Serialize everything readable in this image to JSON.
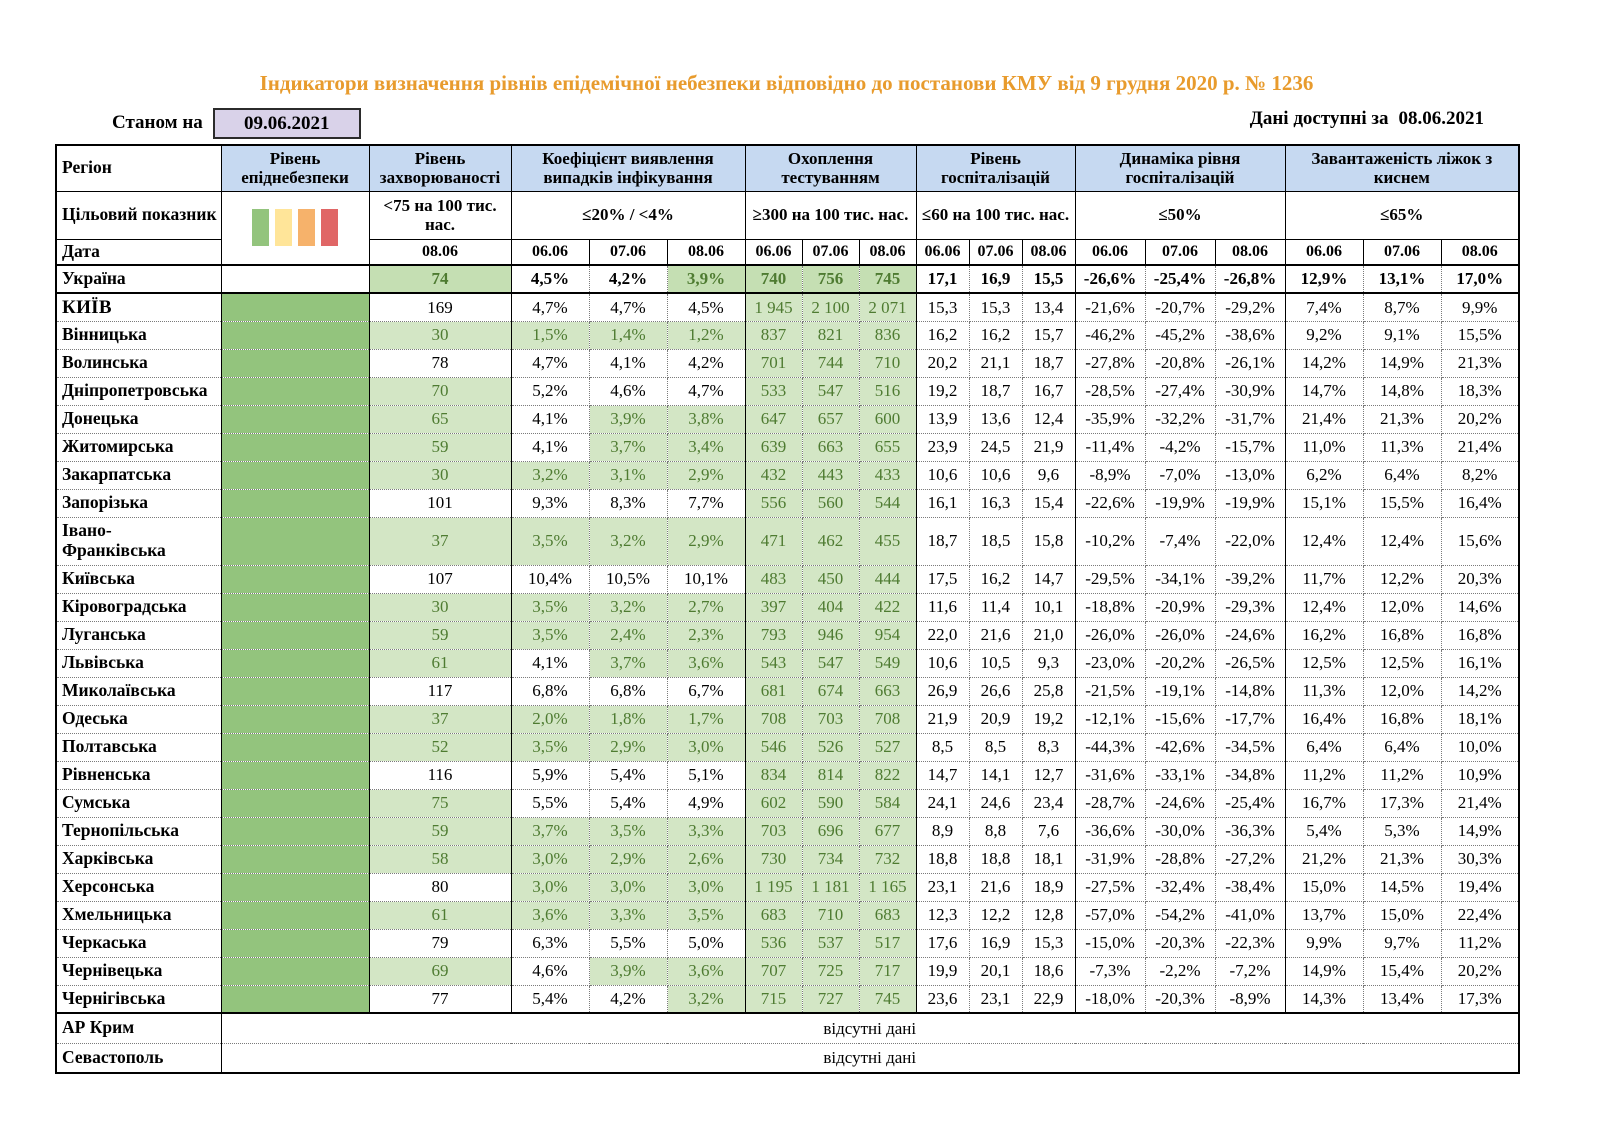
{
  "title": "Індикатори визначення рівнів епідемічної небезпеки відповідно до постанови КМУ від 9 грудня 2020 р. № 1236",
  "as_of_label": "Станом на",
  "as_of_date": "09.06.2021",
  "available_label": "Дані доступні за",
  "available_date": "08.06.2021",
  "colors": {
    "accent": "#E89B2D",
    "header_bg": "#C6D9F1",
    "green_cell": "#D3E6C5",
    "green_sum": "#C5DFB3",
    "green_text": "#4E7B31",
    "epid_green": "#93C47D",
    "lavender": "#D9D2E9",
    "legend": [
      "#93C47D",
      "#FFE599",
      "#F6B26B",
      "#E06666"
    ]
  },
  "table": {
    "region_header": "Регіон",
    "target_label": "Цільовий показник",
    "date_label": "Дата",
    "no_data_text": "відсутні дані",
    "groups": [
      {
        "id": "epid",
        "label": "Рівень епіднебезпеки",
        "target": "",
        "cols": 1,
        "dates": []
      },
      {
        "id": "incidence",
        "label": "Рівень захворюваності",
        "target": "<75 на 100 тис. нас.",
        "cols": 1,
        "dates": [
          "08.06"
        ]
      },
      {
        "id": "detection",
        "label": "Коефіцієнт виявлення випадків інфікування",
        "target": "≤20% / <4%",
        "cols": 3,
        "dates": [
          "06.06",
          "07.06",
          "08.06"
        ]
      },
      {
        "id": "testing",
        "label": "Охоплення тестуванням",
        "target": "≥300 на 100 тис. нас.",
        "cols": 3,
        "dates": [
          "06.06",
          "07.06",
          "08.06"
        ]
      },
      {
        "id": "hosp",
        "label": "Рівень госпіталізацій",
        "target": "≤60 на 100 тис. нас.",
        "cols": 3,
        "dates": [
          "06.06",
          "07.06",
          "08.06"
        ]
      },
      {
        "id": "hosp_dyn",
        "label": "Динаміка рівня госпіталізацій",
        "target": "≤50%",
        "cols": 3,
        "dates": [
          "06.06",
          "07.06",
          "08.06"
        ]
      },
      {
        "id": "oxygen",
        "label": "Завантаженість ліжок з киснем",
        "target": "≤65%",
        "cols": 3,
        "dates": [
          "06.06",
          "07.06",
          "08.06"
        ]
      }
    ],
    "rows": [
      {
        "r": "Україна",
        "sum": true,
        "epid": false,
        "inc": "74",
        "incg": 1,
        "det": [
          "4,5%",
          "4,2%",
          "3,9%"
        ],
        "detg": [
          0,
          0,
          1
        ],
        "test": [
          "740",
          "756",
          "745"
        ],
        "hosp": [
          "17,1",
          "16,9",
          "15,5"
        ],
        "dyn": [
          "-26,6%",
          "-25,4%",
          "-26,8%"
        ],
        "oxy": [
          "12,9%",
          "13,1%",
          "17,0%"
        ]
      },
      {
        "r": "КИЇВ",
        "caps": true,
        "epid": true,
        "inc": "169",
        "incg": 0,
        "det": [
          "4,7%",
          "4,7%",
          "4,5%"
        ],
        "detg": [
          0,
          0,
          0
        ],
        "test": [
          "1 945",
          "2 100",
          "2 071"
        ],
        "hosp": [
          "15,3",
          "15,3",
          "13,4"
        ],
        "dyn": [
          "-21,6%",
          "-20,7%",
          "-29,2%"
        ],
        "oxy": [
          "7,4%",
          "8,7%",
          "9,9%"
        ]
      },
      {
        "r": "Вінницька",
        "epid": true,
        "inc": "30",
        "incg": 1,
        "det": [
          "1,5%",
          "1,4%",
          "1,2%"
        ],
        "detg": [
          1,
          1,
          1
        ],
        "test": [
          "837",
          "821",
          "836"
        ],
        "hosp": [
          "16,2",
          "16,2",
          "15,7"
        ],
        "dyn": [
          "-46,2%",
          "-45,2%",
          "-38,6%"
        ],
        "oxy": [
          "9,2%",
          "9,1%",
          "15,5%"
        ]
      },
      {
        "r": "Волинська",
        "epid": true,
        "inc": "78",
        "incg": 0,
        "det": [
          "4,7%",
          "4,1%",
          "4,2%"
        ],
        "detg": [
          0,
          0,
          0
        ],
        "test": [
          "701",
          "744",
          "710"
        ],
        "hosp": [
          "20,2",
          "21,1",
          "18,7"
        ],
        "dyn": [
          "-27,8%",
          "-20,8%",
          "-26,1%"
        ],
        "oxy": [
          "14,2%",
          "14,9%",
          "21,3%"
        ]
      },
      {
        "r": "Дніпропетровська",
        "epid": true,
        "inc": "70",
        "incg": 1,
        "det": [
          "5,2%",
          "4,6%",
          "4,7%"
        ],
        "detg": [
          0,
          0,
          0
        ],
        "test": [
          "533",
          "547",
          "516"
        ],
        "hosp": [
          "19,2",
          "18,7",
          "16,7"
        ],
        "dyn": [
          "-28,5%",
          "-27,4%",
          "-30,9%"
        ],
        "oxy": [
          "14,7%",
          "14,8%",
          "18,3%"
        ]
      },
      {
        "r": "Донецька",
        "epid": true,
        "inc": "65",
        "incg": 1,
        "det": [
          "4,1%",
          "3,9%",
          "3,8%"
        ],
        "detg": [
          0,
          1,
          1
        ],
        "test": [
          "647",
          "657",
          "600"
        ],
        "hosp": [
          "13,9",
          "13,6",
          "12,4"
        ],
        "dyn": [
          "-35,9%",
          "-32,2%",
          "-31,7%"
        ],
        "oxy": [
          "21,4%",
          "21,3%",
          "20,2%"
        ]
      },
      {
        "r": "Житомирська",
        "epid": true,
        "inc": "59",
        "incg": 1,
        "det": [
          "4,1%",
          "3,7%",
          "3,4%"
        ],
        "detg": [
          0,
          1,
          1
        ],
        "test": [
          "639",
          "663",
          "655"
        ],
        "hosp": [
          "23,9",
          "24,5",
          "21,9"
        ],
        "dyn": [
          "-11,4%",
          "-4,2%",
          "-15,7%"
        ],
        "oxy": [
          "11,0%",
          "11,3%",
          "21,4%"
        ]
      },
      {
        "r": "Закарпатська",
        "epid": true,
        "inc": "30",
        "incg": 1,
        "det": [
          "3,2%",
          "3,1%",
          "2,9%"
        ],
        "detg": [
          1,
          1,
          1
        ],
        "test": [
          "432",
          "443",
          "433"
        ],
        "hosp": [
          "10,6",
          "10,6",
          "9,6"
        ],
        "dyn": [
          "-8,9%",
          "-7,0%",
          "-13,0%"
        ],
        "oxy": [
          "6,2%",
          "6,4%",
          "8,2%"
        ]
      },
      {
        "r": "Запорізька",
        "epid": true,
        "inc": "101",
        "incg": 0,
        "det": [
          "9,3%",
          "8,3%",
          "7,7%"
        ],
        "detg": [
          0,
          0,
          0
        ],
        "test": [
          "556",
          "560",
          "544"
        ],
        "hosp": [
          "16,1",
          "16,3",
          "15,4"
        ],
        "dyn": [
          "-22,6%",
          "-19,9%",
          "-19,9%"
        ],
        "oxy": [
          "15,1%",
          "15,5%",
          "16,4%"
        ]
      },
      {
        "r": "Івано-Франківська",
        "tall": true,
        "epid": true,
        "inc": "37",
        "incg": 1,
        "det": [
          "3,5%",
          "3,2%",
          "2,9%"
        ],
        "detg": [
          1,
          1,
          1
        ],
        "test": [
          "471",
          "462",
          "455"
        ],
        "hosp": [
          "18,7",
          "18,5",
          "15,8"
        ],
        "dyn": [
          "-10,2%",
          "-7,4%",
          "-22,0%"
        ],
        "oxy": [
          "12,4%",
          "12,4%",
          "15,6%"
        ]
      },
      {
        "r": "Київська",
        "epid": true,
        "inc": "107",
        "incg": 0,
        "det": [
          "10,4%",
          "10,5%",
          "10,1%"
        ],
        "detg": [
          0,
          0,
          0
        ],
        "test": [
          "483",
          "450",
          "444"
        ],
        "hosp": [
          "17,5",
          "16,2",
          "14,7"
        ],
        "dyn": [
          "-29,5%",
          "-34,1%",
          "-39,2%"
        ],
        "oxy": [
          "11,7%",
          "12,2%",
          "20,3%"
        ]
      },
      {
        "r": "Кіровоградська",
        "epid": true,
        "inc": "30",
        "incg": 1,
        "det": [
          "3,5%",
          "3,2%",
          "2,7%"
        ],
        "detg": [
          1,
          1,
          1
        ],
        "test": [
          "397",
          "404",
          "422"
        ],
        "hosp": [
          "11,6",
          "11,4",
          "10,1"
        ],
        "dyn": [
          "-18,8%",
          "-20,9%",
          "-29,3%"
        ],
        "oxy": [
          "12,4%",
          "12,0%",
          "14,6%"
        ]
      },
      {
        "r": "Луганська",
        "epid": true,
        "inc": "59",
        "incg": 1,
        "det": [
          "3,5%",
          "2,4%",
          "2,3%"
        ],
        "detg": [
          1,
          1,
          1
        ],
        "test": [
          "793",
          "946",
          "954"
        ],
        "hosp": [
          "22,0",
          "21,6",
          "21,0"
        ],
        "dyn": [
          "-26,0%",
          "-26,0%",
          "-24,6%"
        ],
        "oxy": [
          "16,2%",
          "16,8%",
          "16,8%"
        ]
      },
      {
        "r": "Львівська",
        "epid": true,
        "inc": "61",
        "incg": 1,
        "det": [
          "4,1%",
          "3,7%",
          "3,6%"
        ],
        "detg": [
          0,
          1,
          1
        ],
        "test": [
          "543",
          "547",
          "549"
        ],
        "hosp": [
          "10,6",
          "10,5",
          "9,3"
        ],
        "dyn": [
          "-23,0%",
          "-20,2%",
          "-26,5%"
        ],
        "oxy": [
          "12,5%",
          "12,5%",
          "16,1%"
        ]
      },
      {
        "r": "Миколаївська",
        "epid": true,
        "inc": "117",
        "incg": 0,
        "det": [
          "6,8%",
          "6,8%",
          "6,7%"
        ],
        "detg": [
          0,
          0,
          0
        ],
        "test": [
          "681",
          "674",
          "663"
        ],
        "hosp": [
          "26,9",
          "26,6",
          "25,8"
        ],
        "dyn": [
          "-21,5%",
          "-19,1%",
          "-14,8%"
        ],
        "oxy": [
          "11,3%",
          "12,0%",
          "14,2%"
        ]
      },
      {
        "r": "Одеська",
        "epid": true,
        "inc": "37",
        "incg": 1,
        "det": [
          "2,0%",
          "1,8%",
          "1,7%"
        ],
        "detg": [
          1,
          1,
          1
        ],
        "test": [
          "708",
          "703",
          "708"
        ],
        "hosp": [
          "21,9",
          "20,9",
          "19,2"
        ],
        "dyn": [
          "-12,1%",
          "-15,6%",
          "-17,7%"
        ],
        "oxy": [
          "16,4%",
          "16,8%",
          "18,1%"
        ]
      },
      {
        "r": "Полтавська",
        "epid": true,
        "inc": "52",
        "incg": 1,
        "det": [
          "3,5%",
          "2,9%",
          "3,0%"
        ],
        "detg": [
          1,
          1,
          1
        ],
        "test": [
          "546",
          "526",
          "527"
        ],
        "hosp": [
          "8,5",
          "8,5",
          "8,3"
        ],
        "dyn": [
          "-44,3%",
          "-42,6%",
          "-34,5%"
        ],
        "oxy": [
          "6,4%",
          "6,4%",
          "10,0%"
        ]
      },
      {
        "r": "Рівненська",
        "epid": true,
        "inc": "116",
        "incg": 0,
        "det": [
          "5,9%",
          "5,4%",
          "5,1%"
        ],
        "detg": [
          0,
          0,
          0
        ],
        "test": [
          "834",
          "814",
          "822"
        ],
        "hosp": [
          "14,7",
          "14,1",
          "12,7"
        ],
        "dyn": [
          "-31,6%",
          "-33,1%",
          "-34,8%"
        ],
        "oxy": [
          "11,2%",
          "11,2%",
          "10,9%"
        ]
      },
      {
        "r": "Сумська",
        "epid": true,
        "inc": "75",
        "incg": 1,
        "det": [
          "5,5%",
          "5,4%",
          "4,9%"
        ],
        "detg": [
          0,
          0,
          0
        ],
        "test": [
          "602",
          "590",
          "584"
        ],
        "hosp": [
          "24,1",
          "24,6",
          "23,4"
        ],
        "dyn": [
          "-28,7%",
          "-24,6%",
          "-25,4%"
        ],
        "oxy": [
          "16,7%",
          "17,3%",
          "21,4%"
        ]
      },
      {
        "r": "Тернопільська",
        "epid": true,
        "inc": "59",
        "incg": 1,
        "det": [
          "3,7%",
          "3,5%",
          "3,3%"
        ],
        "detg": [
          1,
          1,
          1
        ],
        "test": [
          "703",
          "696",
          "677"
        ],
        "hosp": [
          "8,9",
          "8,8",
          "7,6"
        ],
        "dyn": [
          "-36,6%",
          "-30,0%",
          "-36,3%"
        ],
        "oxy": [
          "5,4%",
          "5,3%",
          "14,9%"
        ]
      },
      {
        "r": "Харківська",
        "epid": true,
        "inc": "58",
        "incg": 1,
        "det": [
          "3,0%",
          "2,9%",
          "2,6%"
        ],
        "detg": [
          1,
          1,
          1
        ],
        "test": [
          "730",
          "734",
          "732"
        ],
        "hosp": [
          "18,8",
          "18,8",
          "18,1"
        ],
        "dyn": [
          "-31,9%",
          "-28,8%",
          "-27,2%"
        ],
        "oxy": [
          "21,2%",
          "21,3%",
          "30,3%"
        ]
      },
      {
        "r": "Херсонська",
        "epid": true,
        "inc": "80",
        "incg": 0,
        "det": [
          "3,0%",
          "3,0%",
          "3,0%"
        ],
        "detg": [
          1,
          1,
          1
        ],
        "test": [
          "1 195",
          "1 181",
          "1 165"
        ],
        "hosp": [
          "23,1",
          "21,6",
          "18,9"
        ],
        "dyn": [
          "-27,5%",
          "-32,4%",
          "-38,4%"
        ],
        "oxy": [
          "15,0%",
          "14,5%",
          "19,4%"
        ]
      },
      {
        "r": "Хмельницька",
        "epid": true,
        "inc": "61",
        "incg": 1,
        "det": [
          "3,6%",
          "3,3%",
          "3,5%"
        ],
        "detg": [
          1,
          1,
          1
        ],
        "test": [
          "683",
          "710",
          "683"
        ],
        "hosp": [
          "12,3",
          "12,2",
          "12,8"
        ],
        "dyn": [
          "-57,0%",
          "-54,2%",
          "-41,0%"
        ],
        "oxy": [
          "13,7%",
          "15,0%",
          "22,4%"
        ]
      },
      {
        "r": "Черкаська",
        "epid": true,
        "inc": "79",
        "incg": 0,
        "det": [
          "6,3%",
          "5,5%",
          "5,0%"
        ],
        "detg": [
          0,
          0,
          0
        ],
        "test": [
          "536",
          "537",
          "517"
        ],
        "hosp": [
          "17,6",
          "16,9",
          "15,3"
        ],
        "dyn": [
          "-15,0%",
          "-20,3%",
          "-22,3%"
        ],
        "oxy": [
          "9,9%",
          "9,7%",
          "11,2%"
        ]
      },
      {
        "r": "Чернівецька",
        "epid": true,
        "inc": "69",
        "incg": 1,
        "det": [
          "4,6%",
          "3,9%",
          "3,6%"
        ],
        "detg": [
          0,
          1,
          1
        ],
        "test": [
          "707",
          "725",
          "717"
        ],
        "hosp": [
          "19,9",
          "20,1",
          "18,6"
        ],
        "dyn": [
          "-7,3%",
          "-2,2%",
          "-7,2%"
        ],
        "oxy": [
          "14,9%",
          "15,4%",
          "20,2%"
        ]
      },
      {
        "r": "Чернігівська",
        "epid": true,
        "inc": "77",
        "incg": 0,
        "det": [
          "5,4%",
          "4,2%",
          "3,2%"
        ],
        "detg": [
          0,
          0,
          1
        ],
        "test": [
          "715",
          "727",
          "745"
        ],
        "hosp": [
          "23,6",
          "23,1",
          "22,9"
        ],
        "dyn": [
          "-18,0%",
          "-20,3%",
          "-8,9%"
        ],
        "oxy": [
          "14,3%",
          "13,4%",
          "17,3%"
        ]
      },
      {
        "r": "АР Крим",
        "nodata": true,
        "sep": true
      },
      {
        "r": "Севастополь",
        "nodata": true
      }
    ]
  }
}
